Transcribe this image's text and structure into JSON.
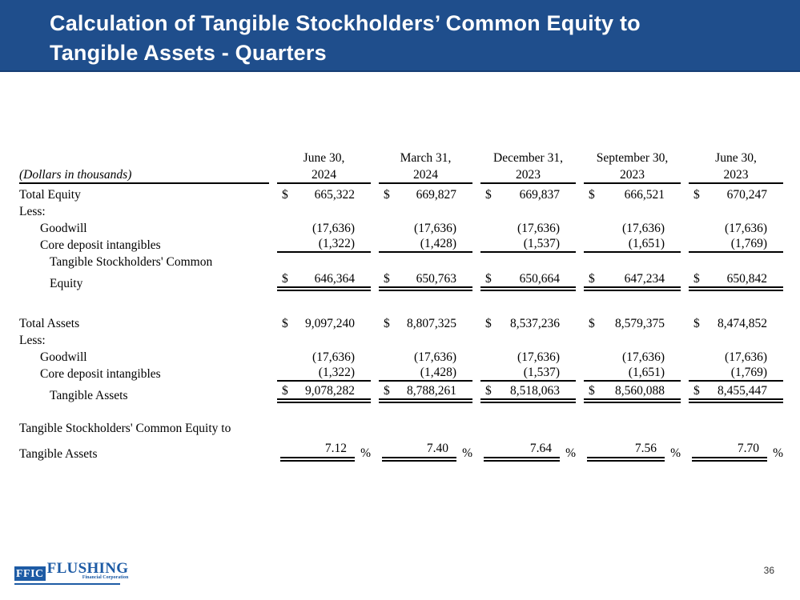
{
  "slide": {
    "title_line1": "Calculation of Tangible Stockholders’ Common Equity to",
    "title_line2": "Tangible Assets - Quarters",
    "page_number": "36"
  },
  "logo": {
    "abbr": "FFIC",
    "name": "FLUSHING",
    "subtitle": "Financial Corporation"
  },
  "table": {
    "unit_label": "(Dollars in thousands)",
    "dollar_sign": "$",
    "percent_sign": "%",
    "col_headers": [
      {
        "l1": "June 30,",
        "l2": "2024"
      },
      {
        "l1": "March 31,",
        "l2": "2024"
      },
      {
        "l1": "December 31,",
        "l2": "2023"
      },
      {
        "l1": "September 30,",
        "l2": "2023"
      },
      {
        "l1": "June 30,",
        "l2": "2023"
      }
    ],
    "labels": {
      "total_equity": "Total Equity",
      "less1": "Less:",
      "goodwill1": "Goodwill",
      "core_deposit1": "Core deposit intangibles",
      "tsce_l1": "Tangible Stockholders' Common",
      "tsce_l2": "Equity",
      "total_assets": "Total Assets",
      "less2": "Less:",
      "goodwill2": "Goodwill",
      "core_deposit2": "Core deposit intangibles",
      "tangible_assets": "Tangible Assets",
      "ratio_l1": "Tangible Stockholders' Common Equity to",
      "ratio_l2": "Tangible Assets"
    },
    "values": {
      "total_equity": [
        "665,322",
        "669,827",
        "669,837",
        "666,521",
        "670,247"
      ],
      "goodwill1": [
        "(17,636)",
        "(17,636)",
        "(17,636)",
        "(17,636)",
        "(17,636)"
      ],
      "core_deposit1": [
        "(1,322)",
        "(1,428)",
        "(1,537)",
        "(1,651)",
        "(1,769)"
      ],
      "tsce": [
        "646,364",
        "650,763",
        "650,664",
        "647,234",
        "650,842"
      ],
      "total_assets": [
        "9,097,240",
        "8,807,325",
        "8,537,236",
        "8,579,375",
        "8,474,852"
      ],
      "goodwill2": [
        "(17,636)",
        "(17,636)",
        "(17,636)",
        "(17,636)",
        "(17,636)"
      ],
      "core_deposit2": [
        "(1,322)",
        "(1,428)",
        "(1,537)",
        "(1,651)",
        "(1,769)"
      ],
      "tangible_assets": [
        "9,078,282",
        "8,788,261",
        "8,518,063",
        "8,560,088",
        "8,455,447"
      ],
      "ratio": [
        "7.12",
        "7.40",
        "7.64",
        "7.56",
        "7.70"
      ]
    }
  }
}
